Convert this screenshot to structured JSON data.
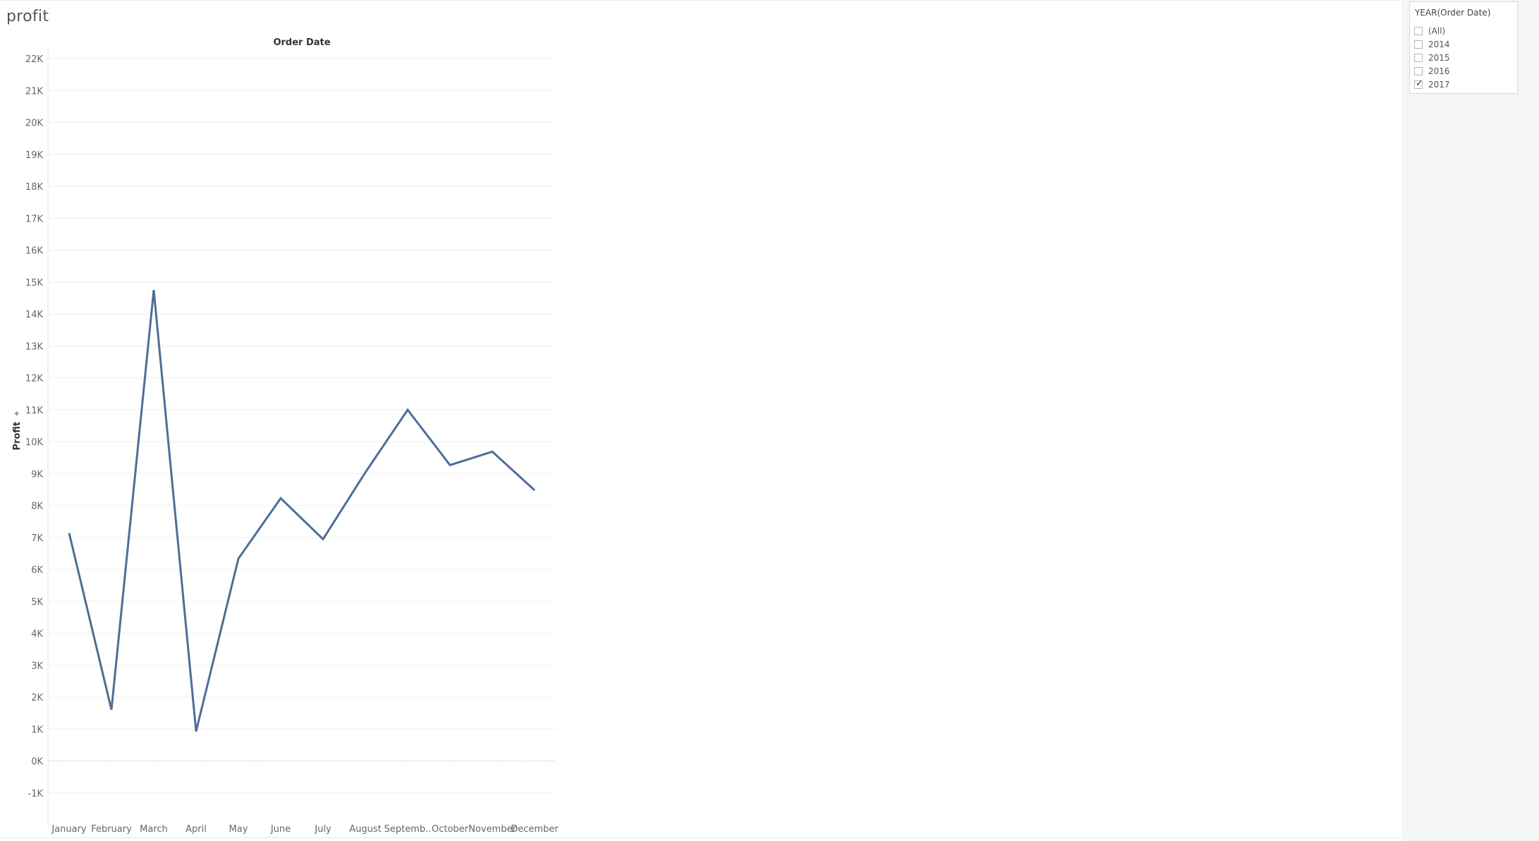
{
  "sheet": {
    "title": "profit"
  },
  "filter": {
    "title": "YEAR(Order Date)",
    "options": [
      {
        "label": "(All)",
        "checked": false
      },
      {
        "label": "2014",
        "checked": false
      },
      {
        "label": "2015",
        "checked": false
      },
      {
        "label": "2016",
        "checked": false
      },
      {
        "label": "2017",
        "checked": true
      }
    ]
  },
  "chart_data": {
    "type": "line",
    "title": "",
    "header_label": "Order Date",
    "xlabel": "",
    "ylabel": "Profit",
    "categories": [
      "January",
      "February",
      "March",
      "April",
      "May",
      "June",
      "July",
      "August",
      "Septemb..",
      "October",
      "November",
      "December"
    ],
    "series": [
      {
        "values": [
          7140,
          1610,
          14750,
          930,
          6340,
          8230,
          6950,
          9040,
          11000,
          9270,
          9690,
          8480
        ]
      }
    ],
    "ylim": [
      -1000,
      22000
    ],
    "yticks": [
      -1000,
      0,
      1000,
      2000,
      3000,
      4000,
      5000,
      6000,
      7000,
      8000,
      9000,
      10000,
      11000,
      12000,
      13000,
      14000,
      15000,
      16000,
      17000,
      18000,
      19000,
      20000,
      21000,
      22000
    ],
    "ytick_labels": [
      "-1K",
      "0K",
      "1K",
      "2K",
      "3K",
      "4K",
      "5K",
      "6K",
      "7K",
      "8K",
      "9K",
      "10K",
      "11K",
      "12K",
      "13K",
      "14K",
      "15K",
      "16K",
      "17K",
      "18K",
      "19K",
      "20K",
      "21K",
      "22K"
    ],
    "grid": true,
    "line_color": "#4e6e96"
  }
}
